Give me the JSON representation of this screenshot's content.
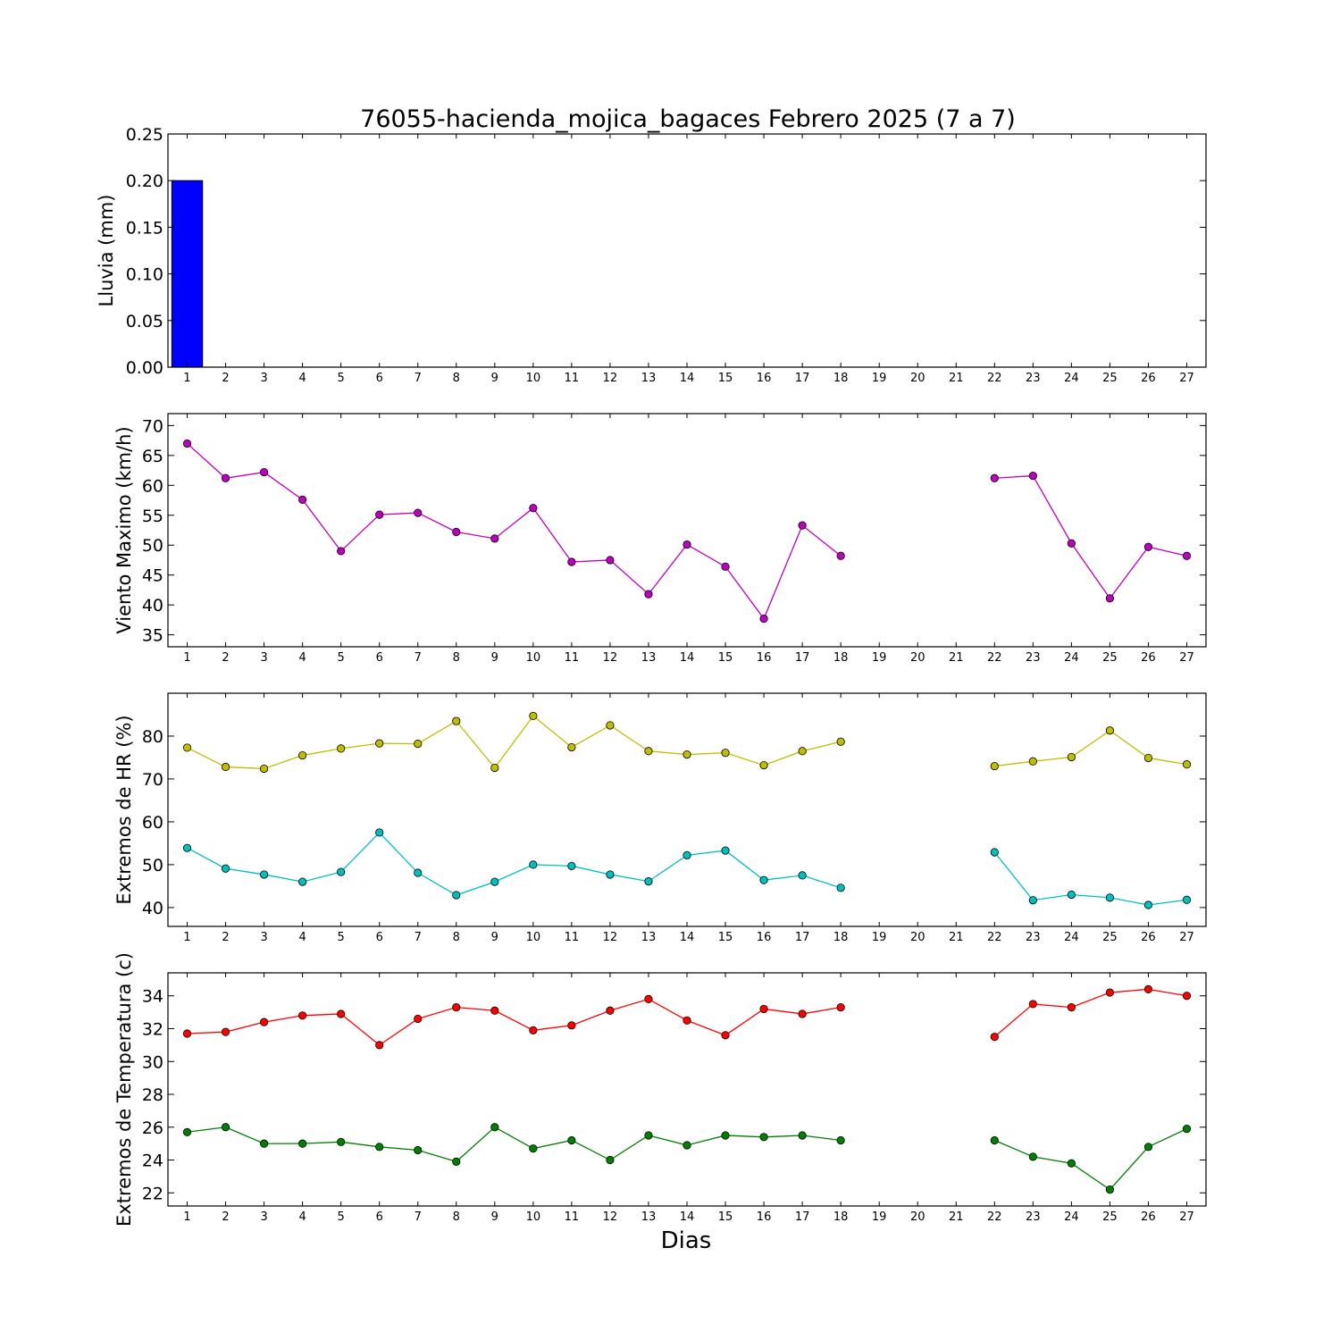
{
  "title": "76055-hacienda_mojica_bagaces Febrero 2025  (7 a 7)",
  "xlabel": "Dias",
  "colors": {
    "rain": "#0000ff",
    "wind": "#bf00bf",
    "hr_max": "#bfbf00",
    "hr_min": "#00bfbf",
    "temp_max": "#ff0000",
    "temp_min": "#008000"
  },
  "chart_data": [
    {
      "type": "bar",
      "ylabel": "Lluvia (mm)",
      "x": [
        1,
        2,
        3,
        4,
        5,
        6,
        7,
        8,
        9,
        10,
        11,
        12,
        13,
        14,
        15,
        16,
        17,
        18,
        19,
        20,
        21,
        22,
        23,
        24,
        25,
        26,
        27
      ],
      "ylim": [
        0,
        0.25
      ],
      "yticks": [
        0.0,
        0.05,
        0.1,
        0.15,
        0.2,
        0.25
      ],
      "ytick_labels": [
        "0.00",
        "0.05",
        "0.10",
        "0.15",
        "0.20",
        "0.25"
      ],
      "series": [
        {
          "values": [
            0.2,
            0,
            0,
            0,
            0,
            0,
            0,
            0,
            0,
            0,
            0,
            0,
            0,
            0,
            0,
            0,
            0,
            0,
            0,
            0,
            0,
            0,
            0,
            0,
            0,
            0,
            0
          ]
        }
      ]
    },
    {
      "type": "line",
      "ylabel": "Viento Maximo (km/h)",
      "x": [
        1,
        2,
        3,
        4,
        5,
        6,
        7,
        8,
        9,
        10,
        11,
        12,
        13,
        14,
        15,
        16,
        17,
        18,
        19,
        20,
        21,
        22,
        23,
        24,
        25,
        26,
        27
      ],
      "ylim": [
        33,
        72
      ],
      "yticks": [
        35,
        40,
        45,
        50,
        55,
        60,
        65,
        70
      ],
      "ytick_labels": [
        "35",
        "40",
        "45",
        "50",
        "55",
        "60",
        "65",
        "70"
      ],
      "series": [
        {
          "values": [
            67,
            61.2,
            62.2,
            57.6,
            49,
            55.1,
            55.4,
            52.2,
            51.1,
            56.2,
            47.2,
            47.5,
            41.8,
            50.1,
            46.4,
            37.7,
            53.3,
            48.2,
            null,
            null,
            null,
            61.2,
            61.6,
            50.3,
            41.1,
            49.7,
            48.2
          ]
        }
      ]
    },
    {
      "type": "line",
      "ylabel": "Extremos de HR (%)",
      "x": [
        1,
        2,
        3,
        4,
        5,
        6,
        7,
        8,
        9,
        10,
        11,
        12,
        13,
        14,
        15,
        16,
        17,
        18,
        19,
        20,
        21,
        22,
        23,
        24,
        25,
        26,
        27
      ],
      "ylim": [
        35.6,
        90
      ],
      "yticks": [
        40,
        50,
        60,
        70,
        80
      ],
      "ytick_labels": [
        "40",
        "50",
        "60",
        "70",
        "80"
      ],
      "series": [
        {
          "values": [
            77.3,
            72.8,
            72.4,
            75.5,
            77.1,
            78.3,
            78.2,
            83.5,
            72.6,
            84.7,
            77.4,
            82.5,
            76.5,
            75.7,
            76.1,
            73.2,
            76.5,
            78.7,
            null,
            null,
            null,
            73,
            74.1,
            75.1,
            81.3,
            74.9,
            73.4
          ]
        },
        {
          "values": [
            53.9,
            49.1,
            47.7,
            46,
            48.3,
            57.5,
            48.1,
            42.9,
            46,
            50,
            49.7,
            47.7,
            46.1,
            52.2,
            53.3,
            46.4,
            47.5,
            44.6,
            null,
            null,
            null,
            52.9,
            41.7,
            43,
            42.3,
            40.6,
            41.8
          ]
        }
      ]
    },
    {
      "type": "line",
      "ylabel": "Extremos de Temperatura (c)",
      "x": [
        1,
        2,
        3,
        4,
        5,
        6,
        7,
        8,
        9,
        10,
        11,
        12,
        13,
        14,
        15,
        16,
        17,
        18,
        19,
        20,
        21,
        22,
        23,
        24,
        25,
        26,
        27
      ],
      "ylim": [
        21.2,
        35.4
      ],
      "yticks": [
        22,
        24,
        26,
        28,
        30,
        32,
        34
      ],
      "ytick_labels": [
        "22",
        "24",
        "26",
        "28",
        "30",
        "32",
        "34"
      ],
      "series": [
        {
          "values": [
            31.7,
            31.8,
            32.4,
            32.8,
            32.9,
            31,
            32.6,
            33.3,
            33.1,
            31.9,
            32.2,
            33.1,
            33.8,
            32.5,
            31.6,
            33.2,
            32.9,
            33.3,
            null,
            null,
            null,
            31.5,
            33.5,
            33.3,
            34.2,
            34.4,
            34
          ]
        },
        {
          "values": [
            25.7,
            26,
            25,
            25,
            25.1,
            24.8,
            24.6,
            23.9,
            26,
            24.7,
            25.2,
            24,
            25.5,
            24.9,
            25.5,
            25.4,
            25.5,
            25.2,
            null,
            null,
            null,
            25.2,
            24.2,
            23.8,
            22.2,
            24.8,
            25.9
          ]
        }
      ]
    }
  ]
}
